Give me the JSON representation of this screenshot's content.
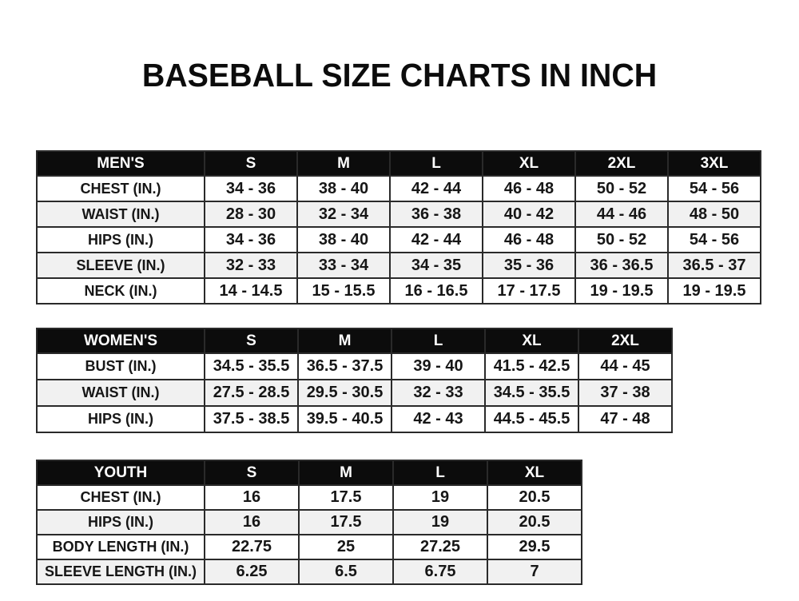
{
  "page": {
    "title": "BASEBALL SIZE CHARTS IN INCH"
  },
  "colors": {
    "header_bg": "#0c0c0c",
    "header_text": "#ffffff",
    "row_stripe": "#f1f1f1",
    "row_plain": "#ffffff",
    "border": "#2a2a2a",
    "text": "#161616"
  },
  "tables": [
    {
      "id": "mens",
      "header": [
        "MEN'S",
        "S",
        "M",
        "L",
        "XL",
        "2XL",
        "3XL"
      ],
      "rows": [
        [
          "CHEST (IN.)",
          "34 - 36",
          "38 - 40",
          "42 - 44",
          "46 - 48",
          "50 - 52",
          "54 - 56"
        ],
        [
          "WAIST (IN.)",
          "28 - 30",
          "32 - 34",
          "36 - 38",
          "40 - 42",
          "44 - 46",
          "48 - 50"
        ],
        [
          "HIPS (IN.)",
          "34 - 36",
          "38 - 40",
          "42 - 44",
          "46 - 48",
          "50 - 52",
          "54 - 56"
        ],
        [
          "SLEEVE (IN.)",
          "32 - 33",
          "33 - 34",
          "34 - 35",
          "35 - 36",
          "36 - 36.5",
          "36.5 - 37"
        ],
        [
          "NECK (IN.)",
          "14 - 14.5",
          "15 - 15.5",
          "16 - 16.5",
          "17 - 17.5",
          "19 - 19.5",
          "19 - 19.5"
        ]
      ]
    },
    {
      "id": "womens",
      "header": [
        "WOMEN'S",
        "S",
        "M",
        "L",
        "XL",
        "2XL"
      ],
      "rows": [
        [
          "BUST (IN.)",
          "34.5 - 35.5",
          "36.5 - 37.5",
          "39 - 40",
          "41.5 - 42.5",
          "44 - 45"
        ],
        [
          "WAIST (IN.)",
          "27.5 - 28.5",
          "29.5 - 30.5",
          "32 - 33",
          "34.5 - 35.5",
          "37 - 38"
        ],
        [
          "HIPS (IN.)",
          "37.5 - 38.5",
          "39.5 - 40.5",
          "42 - 43",
          "44.5 - 45.5",
          "47 - 48"
        ]
      ]
    },
    {
      "id": "youth",
      "header": [
        "YOUTH",
        "S",
        "M",
        "L",
        "XL"
      ],
      "rows": [
        [
          "CHEST (IN.)",
          "16",
          "17.5",
          "19",
          "20.5"
        ],
        [
          "HIPS (IN.)",
          "16",
          "17.5",
          "19",
          "20.5"
        ],
        [
          "BODY LENGTH (IN.)",
          "22.75",
          "25",
          "27.25",
          "29.5"
        ],
        [
          "SLEEVE LENGTH (IN.)",
          "6.25",
          "6.5",
          "6.75",
          "7"
        ]
      ]
    }
  ]
}
